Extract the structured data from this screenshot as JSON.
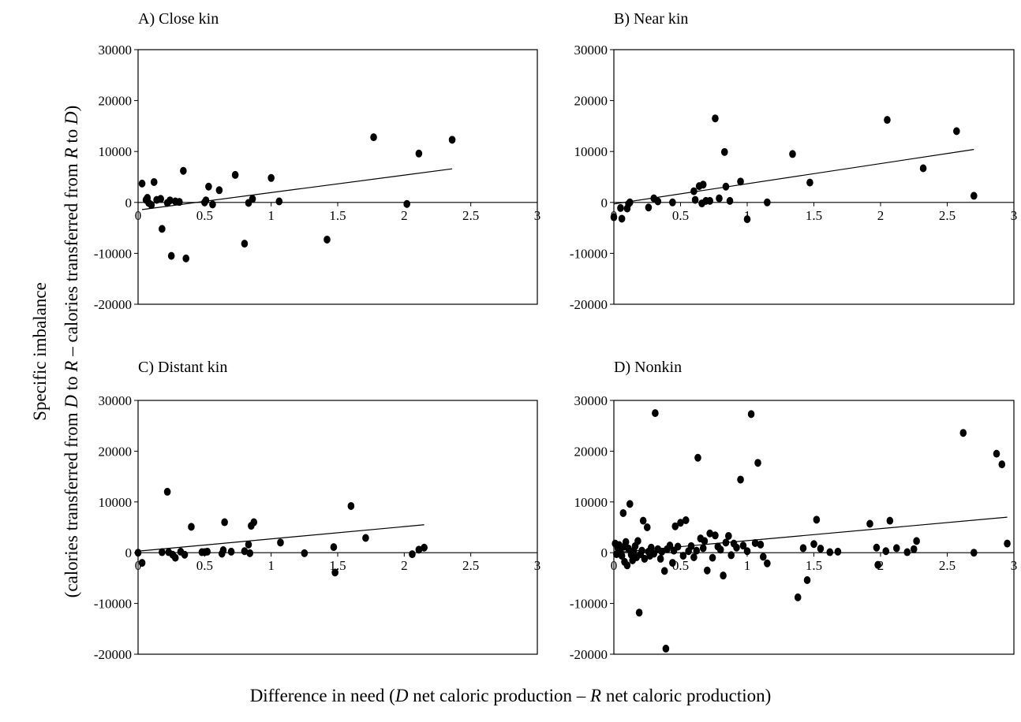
{
  "figure": {
    "ylabel_line1": "Specific imbalance",
    "ylabel_line2_parts": [
      "(calories transferred from ",
      "D",
      " to ",
      "R",
      " – calories transferred from ",
      "R",
      " to ",
      "D",
      ")"
    ],
    "xlabel_parts": [
      "Difference in need  (",
      "D",
      " net caloric production – ",
      "R",
      " net caloric production)"
    ]
  },
  "chart_data": [
    {
      "type": "scatter",
      "title": "A) Close kin",
      "xlim": [
        0,
        3
      ],
      "ylim": [
        -20000,
        30000
      ],
      "xticks": [
        0,
        0.5,
        1,
        1.5,
        2,
        2.5,
        3
      ],
      "xtick_labels": [
        "0",
        "0.5",
        "1",
        "1.5",
        "2",
        "2.5",
        "3"
      ],
      "yticks": [
        -20000,
        -10000,
        0,
        10000,
        20000,
        30000
      ],
      "ytick_labels": [
        "-20000",
        "-10000",
        "0",
        "10000",
        "20000",
        "30000"
      ],
      "points": [
        [
          0.03,
          3700
        ],
        [
          0.06,
          500
        ],
        [
          0.07,
          900
        ],
        [
          0.08,
          -100
        ],
        [
          0.1,
          -500
        ],
        [
          0.12,
          4000
        ],
        [
          0.14,
          500
        ],
        [
          0.17,
          700
        ],
        [
          0.18,
          -5200
        ],
        [
          0.22,
          -100
        ],
        [
          0.24,
          400
        ],
        [
          0.25,
          -10500
        ],
        [
          0.28,
          200
        ],
        [
          0.31,
          100
        ],
        [
          0.34,
          6200
        ],
        [
          0.36,
          -11000
        ],
        [
          0.5,
          0
        ],
        [
          0.51,
          400
        ],
        [
          0.53,
          3100
        ],
        [
          0.56,
          -400
        ],
        [
          0.61,
          2400
        ],
        [
          0.73,
          5400
        ],
        [
          0.8,
          -8100
        ],
        [
          0.83,
          -100
        ],
        [
          0.86,
          700
        ],
        [
          1.0,
          4800
        ],
        [
          1.06,
          200
        ],
        [
          1.42,
          -7300
        ],
        [
          1.77,
          12800
        ],
        [
          2.02,
          -300
        ],
        [
          2.11,
          9600
        ],
        [
          2.36,
          12300
        ]
      ],
      "trend": [
        [
          0.03,
          -1400
        ],
        [
          2.36,
          6600
        ]
      ]
    },
    {
      "type": "scatter",
      "title": "B) Near kin",
      "xlim": [
        0,
        3
      ],
      "ylim": [
        -20000,
        30000
      ],
      "xticks": [
        0,
        0.5,
        1,
        1.5,
        2,
        2.5,
        3
      ],
      "xtick_labels": [
        "0",
        "0.5",
        "1",
        "1.5",
        "2",
        "2.5",
        "3"
      ],
      "yticks": [
        -20000,
        -10000,
        0,
        10000,
        20000,
        30000
      ],
      "ytick_labels": [
        "-20000",
        "-10000",
        "0",
        "10000",
        "20000",
        "30000"
      ],
      "points": [
        [
          0.0,
          -2900
        ],
        [
          0.05,
          -1100
        ],
        [
          0.06,
          -3200
        ],
        [
          0.1,
          -1200
        ],
        [
          0.11,
          -300
        ],
        [
          0.12,
          0
        ],
        [
          0.26,
          -1000
        ],
        [
          0.3,
          800
        ],
        [
          0.33,
          200
        ],
        [
          0.44,
          0
        ],
        [
          0.6,
          2200
        ],
        [
          0.61,
          500
        ],
        [
          0.64,
          3200
        ],
        [
          0.66,
          -200
        ],
        [
          0.67,
          3500
        ],
        [
          0.69,
          300
        ],
        [
          0.72,
          300
        ],
        [
          0.76,
          16500
        ],
        [
          0.79,
          800
        ],
        [
          0.83,
          9900
        ],
        [
          0.84,
          3100
        ],
        [
          0.87,
          300
        ],
        [
          0.95,
          4100
        ],
        [
          1.0,
          -3300
        ],
        [
          1.15,
          0
        ],
        [
          1.34,
          9500
        ],
        [
          1.47,
          3900
        ],
        [
          2.05,
          16200
        ],
        [
          2.32,
          6700
        ],
        [
          2.57,
          14000
        ],
        [
          2.7,
          1300
        ]
      ],
      "trend": [
        [
          0.0,
          -300
        ],
        [
          2.7,
          10400
        ]
      ]
    },
    {
      "type": "scatter",
      "title": "C) Distant kin",
      "xlim": [
        0,
        3
      ],
      "ylim": [
        -20000,
        30000
      ],
      "xticks": [
        0,
        0.5,
        1,
        1.5,
        2,
        2.5,
        3
      ],
      "xtick_labels": [
        "0",
        "0.5",
        "1",
        "1.5",
        "2",
        "2.5",
        "3"
      ],
      "yticks": [
        -20000,
        -10000,
        0,
        10000,
        20000,
        30000
      ],
      "ytick_labels": [
        "-20000",
        "-10000",
        "0",
        "10000",
        "20000",
        "30000"
      ],
      "points": [
        [
          0.0,
          0
        ],
        [
          0.03,
          -2000
        ],
        [
          0.18,
          100
        ],
        [
          0.22,
          12000
        ],
        [
          0.23,
          100
        ],
        [
          0.26,
          -400
        ],
        [
          0.28,
          -1000
        ],
        [
          0.32,
          200
        ],
        [
          0.35,
          -400
        ],
        [
          0.4,
          5100
        ],
        [
          0.48,
          100
        ],
        [
          0.5,
          100
        ],
        [
          0.52,
          200
        ],
        [
          0.63,
          -200
        ],
        [
          0.64,
          500
        ],
        [
          0.65,
          6000
        ],
        [
          0.7,
          200
        ],
        [
          0.8,
          300
        ],
        [
          0.83,
          1600
        ],
        [
          0.84,
          -100
        ],
        [
          0.85,
          5300
        ],
        [
          0.87,
          6000
        ],
        [
          1.07,
          2000
        ],
        [
          1.25,
          -100
        ],
        [
          1.47,
          1100
        ],
        [
          1.48,
          -3900
        ],
        [
          1.6,
          9200
        ],
        [
          1.71,
          2900
        ],
        [
          2.06,
          -300
        ],
        [
          2.11,
          600
        ],
        [
          2.15,
          1000
        ]
      ],
      "trend": [
        [
          0.0,
          300
        ],
        [
          2.15,
          5500
        ]
      ]
    },
    {
      "type": "scatter",
      "title": "D) Nonkin",
      "xlim": [
        0,
        3
      ],
      "ylim": [
        -20000,
        30000
      ],
      "xticks": [
        0,
        0.5,
        1,
        1.5,
        2,
        2.5,
        3
      ],
      "xtick_labels": [
        "0",
        "0.5",
        "1",
        "1.5",
        "2",
        "2.5",
        "3"
      ],
      "yticks": [
        -20000,
        -10000,
        0,
        10000,
        20000,
        30000
      ],
      "ytick_labels": [
        "-20000",
        "-10000",
        "0",
        "10000",
        "20000",
        "30000"
      ],
      "points": [
        [
          0.01,
          1800
        ],
        [
          0.02,
          -300
        ],
        [
          0.03,
          900
        ],
        [
          0.04,
          1500
        ],
        [
          0.05,
          200
        ],
        [
          0.06,
          -600
        ],
        [
          0.07,
          7800
        ],
        [
          0.08,
          1200
        ],
        [
          0.08,
          -1800
        ],
        [
          0.09,
          2100
        ],
        [
          0.1,
          -2500
        ],
        [
          0.11,
          800
        ],
        [
          0.12,
          9600
        ],
        [
          0.13,
          -400
        ],
        [
          0.14,
          -1500
        ],
        [
          0.15,
          300
        ],
        [
          0.16,
          1300
        ],
        [
          0.17,
          -900
        ],
        [
          0.18,
          2300
        ],
        [
          0.19,
          -11800
        ],
        [
          0.2,
          -300
        ],
        [
          0.21,
          400
        ],
        [
          0.22,
          6300
        ],
        [
          0.23,
          -1200
        ],
        [
          0.25,
          5000
        ],
        [
          0.26,
          200
        ],
        [
          0.27,
          -600
        ],
        [
          0.28,
          1000
        ],
        [
          0.3,
          -200
        ],
        [
          0.31,
          27500
        ],
        [
          0.33,
          700
        ],
        [
          0.35,
          -1200
        ],
        [
          0.36,
          200
        ],
        [
          0.38,
          -3600
        ],
        [
          0.39,
          -18900
        ],
        [
          0.4,
          700
        ],
        [
          0.42,
          1400
        ],
        [
          0.44,
          -2000
        ],
        [
          0.45,
          400
        ],
        [
          0.46,
          5200
        ],
        [
          0.48,
          1200
        ],
        [
          0.5,
          5900
        ],
        [
          0.52,
          -600
        ],
        [
          0.54,
          6400
        ],
        [
          0.56,
          300
        ],
        [
          0.58,
          1300
        ],
        [
          0.6,
          -900
        ],
        [
          0.62,
          400
        ],
        [
          0.63,
          18700
        ],
        [
          0.65,
          2800
        ],
        [
          0.67,
          900
        ],
        [
          0.68,
          2300
        ],
        [
          0.7,
          -3500
        ],
        [
          0.72,
          3800
        ],
        [
          0.74,
          -1000
        ],
        [
          0.76,
          3400
        ],
        [
          0.78,
          1200
        ],
        [
          0.8,
          600
        ],
        [
          0.82,
          -4500
        ],
        [
          0.84,
          2000
        ],
        [
          0.86,
          3300
        ],
        [
          0.88,
          -500
        ],
        [
          0.9,
          1800
        ],
        [
          0.92,
          1000
        ],
        [
          0.95,
          14400
        ],
        [
          0.97,
          1400
        ],
        [
          1.0,
          300
        ],
        [
          1.03,
          27300
        ],
        [
          1.06,
          1900
        ],
        [
          1.08,
          17700
        ],
        [
          1.1,
          1600
        ],
        [
          1.12,
          -800
        ],
        [
          1.15,
          -2100
        ],
        [
          1.38,
          -8800
        ],
        [
          1.42,
          900
        ],
        [
          1.45,
          -5400
        ],
        [
          1.5,
          1700
        ],
        [
          1.52,
          6500
        ],
        [
          1.55,
          800
        ],
        [
          1.62,
          100
        ],
        [
          1.68,
          200
        ],
        [
          1.92,
          5700
        ],
        [
          1.97,
          1000
        ],
        [
          1.98,
          -2400
        ],
        [
          2.04,
          300
        ],
        [
          2.07,
          6300
        ],
        [
          2.12,
          900
        ],
        [
          2.2,
          100
        ],
        [
          2.25,
          700
        ],
        [
          2.27,
          2300
        ],
        [
          2.62,
          23600
        ],
        [
          2.7,
          0
        ],
        [
          2.87,
          19500
        ],
        [
          2.91,
          17400
        ],
        [
          2.95,
          1800
        ]
      ],
      "trend": [
        [
          0.0,
          0
        ],
        [
          2.95,
          7000
        ]
      ]
    }
  ]
}
